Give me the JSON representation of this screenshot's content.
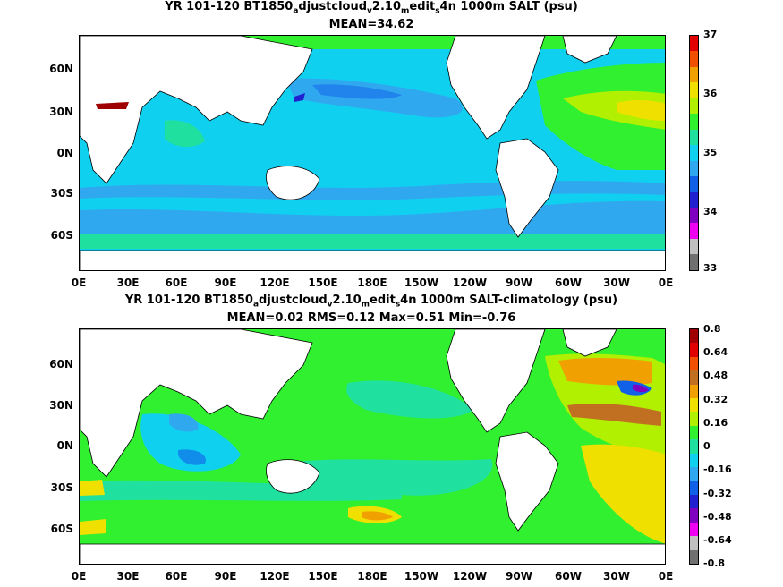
{
  "panel_top": {
    "title_prefix": "YR 101-120 BT1850",
    "title_sub1": "a",
    "title_mid1": "djustcloud",
    "title_sub2": "v",
    "title_mid2": "2.10",
    "title_sub3": "m",
    "title_mid3": "edit",
    "title_sub4": "s",
    "title_suffix": "4n 1000m SALT (psu)",
    "subtitle": "MEAN=34.62",
    "lat_labels": [
      "60N",
      "30N",
      "0N",
      "30S",
      "60S"
    ],
    "lon_labels": [
      "0E",
      "30E",
      "60E",
      "90E",
      "120E",
      "150E",
      "180E",
      "150W",
      "120W",
      "90W",
      "60W",
      "30W",
      "0E"
    ],
    "colorbar_labels": [
      "37",
      "36",
      "35",
      "34",
      "33"
    ],
    "colorbar_colors": [
      "#e00000",
      "#f05000",
      "#f0a000",
      "#f0e000",
      "#b0f000",
      "#30f030",
      "#20e0a0",
      "#10d0f0",
      "#30a8f0",
      "#1060e8",
      "#2020d0",
      "#8000c0",
      "#f000f0",
      "#c0c0c0",
      "#707070"
    ]
  },
  "panel_bottom": {
    "title_prefix": "YR 101-120 BT1850",
    "title_sub1": "a",
    "title_mid1": "djustcloud",
    "title_sub2": "v",
    "title_mid2": "2.10",
    "title_sub3": "m",
    "title_mid3": "edit",
    "title_sub4": "s",
    "title_suffix": "4n 1000m SALT-climatology (psu)",
    "subtitle": "MEAN=0.02   RMS=0.12   Max=0.51   Min=-0.76",
    "lat_labels": [
      "60N",
      "30N",
      "0N",
      "30S",
      "60S"
    ],
    "lon_labels": [
      "0E",
      "30E",
      "60E",
      "90E",
      "120E",
      "150E",
      "180E",
      "150W",
      "120W",
      "90W",
      "60W",
      "30W",
      "0E"
    ],
    "colorbar_labels": [
      "0.8",
      "0.64",
      "0.48",
      "0.32",
      "0.16",
      "0",
      "-0.16",
      "-0.32",
      "-0.48",
      "-0.64",
      "-0.8"
    ],
    "colorbar_colors": [
      "#a00000",
      "#e00000",
      "#f05000",
      "#c07020",
      "#f0a000",
      "#f0e000",
      "#b0f000",
      "#30f030",
      "#20e0a0",
      "#10d0f0",
      "#30a8f0",
      "#1060e8",
      "#2020d0",
      "#8000c0",
      "#f000f0",
      "#c0c0c0",
      "#707070"
    ]
  }
}
